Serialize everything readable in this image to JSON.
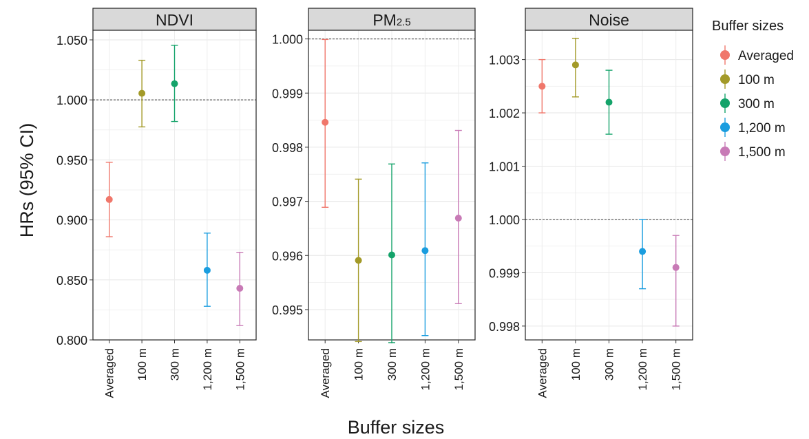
{
  "figure": {
    "ylabel": "HRs (95% CI)",
    "xlabel": "Buffer sizes"
  },
  "legend": {
    "title": "Buffer sizes",
    "entries": [
      {
        "label": "Averaged",
        "color": "#F0776B"
      },
      {
        "label": "100 m",
        "color": "#A39A28"
      },
      {
        "label": "300 m",
        "color": "#14A36A"
      },
      {
        "label": "1,200 m",
        "color": "#1A9DDF"
      },
      {
        "label": "1,500 m",
        "color": "#C87AB6"
      }
    ],
    "placement": "right"
  },
  "chart_data": [
    {
      "type": "scatter",
      "title": "NDVI",
      "categories": [
        "Averaged",
        "100 m",
        "300 m",
        "1,200 m",
        "1,500 m"
      ],
      "values": [
        0.917,
        1.0055,
        1.0135,
        0.858,
        0.843
      ],
      "ci_low": [
        0.886,
        0.9775,
        0.982,
        0.828,
        0.812
      ],
      "ci_high": [
        0.948,
        1.033,
        1.0455,
        0.889,
        0.873
      ],
      "ylim": [
        0.8,
        1.058
      ],
      "yticks": [
        0.8,
        0.85,
        0.9,
        0.95,
        1.0,
        1.05
      ],
      "ytick_labels": [
        "0.800",
        "0.850",
        "0.900",
        "0.950",
        "1.000",
        "1.050"
      ],
      "reference_line": 1.0,
      "grid": true
    },
    {
      "type": "scatter",
      "title": "PM",
      "title_sub": "2.5",
      "categories": [
        "Averaged",
        "100 m",
        "300 m",
        "1,200 m",
        "1,500 m"
      ],
      "values": [
        0.99846,
        0.99591,
        0.99601,
        0.99609,
        0.99669
      ],
      "ci_low": [
        0.99689,
        0.99441,
        0.99439,
        0.99452,
        0.99511
      ],
      "ci_high": [
        0.99999,
        0.99741,
        0.99769,
        0.99771,
        0.99831
      ],
      "ylim": [
        0.99444,
        1.00016
      ],
      "yticks": [
        0.995,
        0.996,
        0.997,
        0.998,
        0.999,
        1.0
      ],
      "ytick_labels": [
        "0.995",
        "0.996",
        "0.997",
        "0.998",
        "0.999",
        "1.000"
      ],
      "reference_line": 1.0,
      "grid": true
    },
    {
      "type": "scatter",
      "title": "Noise",
      "categories": [
        "Averaged",
        "100 m",
        "300 m",
        "1,200 m",
        "1,500 m"
      ],
      "values": [
        1.0025,
        1.0029,
        1.0022,
        0.9994,
        0.9991
      ],
      "ci_low": [
        1.002,
        1.0023,
        1.0016,
        0.9987,
        0.998
      ],
      "ci_high": [
        1.003,
        1.0034,
        1.0028,
        1.0,
        0.9997
      ],
      "ylim": [
        0.99774,
        1.00355
      ],
      "yticks": [
        0.998,
        0.999,
        1.0,
        1.001,
        1.002,
        1.003
      ],
      "ytick_labels": [
        "0.998",
        "0.999",
        "1.000",
        "1.001",
        "1.002",
        "1.003"
      ],
      "reference_line": 1.0,
      "grid": true
    }
  ]
}
